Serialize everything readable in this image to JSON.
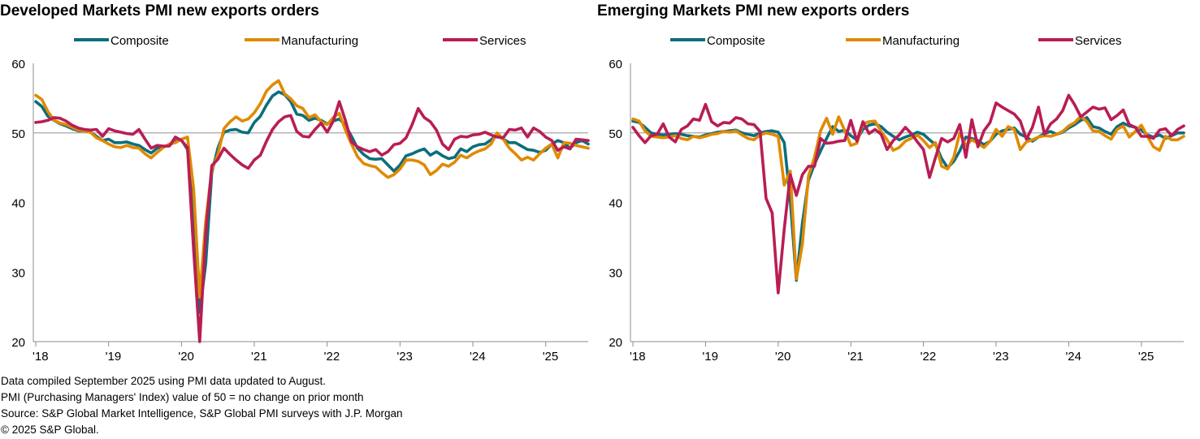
{
  "colors": {
    "composite": "#0c6e7d",
    "manufacturing": "#e08a00",
    "services": "#b91d55",
    "reference": "#a6a6a6",
    "axis": "#8c8c8c"
  },
  "footer": {
    "lines": [
      "Data compiled September 2025 using PMI data updated to August.",
      "PMI (Purchasing Managers' Index) value of 50 = no change on prior month",
      "Source: S&P Global Market Intelligence, S&P Global PMI surveys with J.P. Morgan",
      "© 2025 S&P Global."
    ]
  },
  "chart_data": [
    {
      "type": "line",
      "title": "Developed Markets PMI new exports orders",
      "xlabel": "",
      "ylabel": "",
      "x_start": "2018-01",
      "x_end": "2025-08",
      "ylim": [
        20,
        60
      ],
      "yticks": [
        20,
        30,
        40,
        50,
        60
      ],
      "xtick_labels": [
        "'18",
        "'19",
        "'20",
        "'21",
        "'22",
        "'23",
        "'24",
        "'25"
      ],
      "reference_line": 50,
      "legend_position": "top",
      "series": [
        {
          "name": "Composite",
          "color": "#0c6e7d",
          "values": [
            54.5,
            53.8,
            52.4,
            51.8,
            51.3,
            51.0,
            50.6,
            50.3,
            50.3,
            50.1,
            49.5,
            48.9,
            49.1,
            48.6,
            48.6,
            48.7,
            48.4,
            48.2,
            47.6,
            47.1,
            47.8,
            48.0,
            48.2,
            48.8,
            49.0,
            47.6,
            38.4,
            24.2,
            31.2,
            44.3,
            47.8,
            50.1,
            50.4,
            50.5,
            50.1,
            50.0,
            51.5,
            52.4,
            54.0,
            55.3,
            55.9,
            55.5,
            54.5,
            52.7,
            52.5,
            51.8,
            52.1,
            51.8,
            51.3,
            51.7,
            52.0,
            51.1,
            49.5,
            47.8,
            46.9,
            46.3,
            46.2,
            46.3,
            45.4,
            44.5,
            45.4,
            46.7,
            47.0,
            47.4,
            47.7,
            46.8,
            47.3,
            46.7,
            46.3,
            46.5,
            47.7,
            47.3,
            48.0,
            48.3,
            48.4,
            49.0,
            49.7,
            49.1,
            48.6,
            48.6,
            48.1,
            47.6,
            47.5,
            47.2,
            47.5,
            48.4,
            48.9,
            48.6,
            47.8,
            48.6,
            48.9,
            48.4
          ]
        },
        {
          "name": "Manufacturing",
          "color": "#e08a00",
          "values": [
            55.4,
            54.8,
            53.1,
            51.8,
            51.4,
            51.2,
            50.8,
            50.4,
            50.3,
            50.1,
            49.3,
            48.9,
            48.4,
            48.0,
            47.9,
            48.2,
            47.9,
            47.8,
            47.0,
            46.4,
            47.2,
            47.9,
            48.4,
            48.6,
            49.1,
            49.4,
            42.0,
            26.4,
            37.3,
            44.7,
            46.9,
            50.6,
            51.6,
            52.3,
            51.7,
            52.0,
            52.9,
            54.2,
            56.0,
            56.9,
            57.5,
            55.6,
            54.9,
            53.9,
            53.5,
            52.2,
            52.6,
            51.6,
            51.2,
            52.2,
            52.8,
            50.4,
            48.4,
            46.6,
            45.6,
            45.3,
            45.1,
            44.3,
            43.6,
            44.0,
            44.8,
            46.1,
            46.1,
            45.9,
            45.4,
            44.0,
            44.6,
            45.5,
            45.2,
            45.8,
            46.8,
            46.4,
            47.0,
            47.4,
            47.7,
            48.4,
            50.0,
            49.1,
            47.8,
            47.0,
            46.1,
            46.5,
            46.1,
            47.0,
            47.8,
            48.4,
            46.4,
            48.6,
            48.5,
            48.2,
            48.0,
            47.8
          ]
        },
        {
          "name": "Services",
          "color": "#b91d55",
          "values": [
            51.5,
            51.6,
            51.8,
            52.2,
            52.1,
            51.7,
            51.1,
            50.7,
            50.5,
            50.4,
            50.5,
            49.5,
            50.6,
            50.3,
            50.1,
            49.9,
            49.8,
            50.5,
            49.1,
            47.8,
            48.2,
            48.1,
            48.1,
            49.4,
            48.9,
            47.9,
            33.2,
            20.0,
            35.5,
            45.3,
            46.2,
            47.8,
            46.9,
            46.1,
            45.4,
            44.9,
            46.1,
            46.8,
            48.8,
            50.5,
            51.6,
            52.3,
            52.5,
            50.2,
            49.5,
            49.4,
            50.5,
            51.4,
            50.1,
            51.7,
            54.5,
            51.8,
            48.7,
            48.0,
            47.6,
            47.3,
            47.6,
            46.8,
            47.3,
            48.3,
            48.5,
            49.3,
            51.2,
            53.5,
            52.2,
            51.6,
            50.4,
            48.4,
            47.6,
            49.1,
            49.5,
            49.4,
            49.7,
            49.8,
            50.1,
            49.7,
            49.4,
            49.3,
            50.5,
            50.4,
            50.7,
            49.4,
            50.7,
            50.2,
            49.4,
            48.9,
            47.5,
            48.0,
            47.7,
            49.1,
            49.0,
            48.9
          ]
        }
      ]
    },
    {
      "type": "line",
      "title": "Emerging Markets PMI new exports orders",
      "xlabel": "",
      "ylabel": "",
      "x_start": "2018-01",
      "x_end": "2025-08",
      "ylim": [
        20,
        60
      ],
      "yticks": [
        20,
        30,
        40,
        50,
        60
      ],
      "xtick_labels": [
        "'18",
        "'19",
        "'20",
        "'21",
        "'22",
        "'23",
        "'24",
        "'25"
      ],
      "reference_line": 50,
      "legend_position": "top",
      "series": [
        {
          "name": "Composite",
          "color": "#0c6e7d",
          "values": [
            51.7,
            51.5,
            50.8,
            50.0,
            49.8,
            49.7,
            49.8,
            49.9,
            49.8,
            49.6,
            49.5,
            49.4,
            49.7,
            49.9,
            50.1,
            50.2,
            50.3,
            50.4,
            50.0,
            49.8,
            49.6,
            50.0,
            50.2,
            50.3,
            50.1,
            48.6,
            40.3,
            28.8,
            37.0,
            43.2,
            45.5,
            47.4,
            49.2,
            50.9,
            50.2,
            50.4,
            49.6,
            49.0,
            50.5,
            51.1,
            51.3,
            50.9,
            50.1,
            49.5,
            49.0,
            49.4,
            49.7,
            50.1,
            49.8,
            49.0,
            48.3,
            46.3,
            45.0,
            45.9,
            47.4,
            49.4,
            49.2,
            48.9,
            48.3,
            48.8,
            49.8,
            50.3,
            50.5,
            50.7,
            49.8,
            49.4,
            48.8,
            49.4,
            49.9,
            50.2,
            49.8,
            50.1,
            50.7,
            51.2,
            51.8,
            52.2,
            50.9,
            50.7,
            50.2,
            49.8,
            50.9,
            51.4,
            51.0,
            50.8,
            50.4,
            49.7,
            49.4,
            49.7,
            49.2,
            49.6,
            50.0,
            50.0
          ]
        },
        {
          "name": "Manufacturing",
          "color": "#e08a00",
          "values": [
            52.0,
            51.7,
            50.3,
            49.5,
            49.4,
            49.3,
            49.4,
            49.6,
            49.2,
            49.0,
            49.5,
            49.3,
            49.5,
            49.8,
            49.9,
            50.2,
            50.1,
            50.3,
            49.7,
            49.2,
            49.0,
            49.7,
            50.0,
            49.8,
            49.5,
            42.5,
            44.5,
            29.0,
            34.0,
            43.8,
            46.5,
            50.3,
            52.1,
            49.8,
            52.3,
            50.3,
            48.2,
            48.5,
            51.3,
            51.6,
            51.7,
            50.2,
            49.0,
            47.5,
            47.9,
            48.8,
            49.2,
            49.7,
            48.9,
            47.9,
            48.6,
            45.2,
            44.8,
            46.5,
            50.0,
            48.2,
            49.0,
            48.5,
            47.9,
            48.8,
            50.5,
            49.5,
            50.9,
            50.5,
            47.6,
            48.7,
            49.0,
            49.4,
            49.6,
            49.5,
            49.8,
            50.2,
            51.0,
            51.5,
            52.4,
            51.6,
            50.3,
            50.2,
            49.6,
            49.1,
            50.5,
            51.0,
            49.4,
            50.2,
            51.1,
            49.5,
            48.0,
            47.5,
            49.5,
            49.0,
            49.0,
            49.5
          ]
        },
        {
          "name": "Services",
          "color": "#b91d55",
          "values": [
            50.8,
            49.6,
            48.6,
            49.6,
            49.8,
            51.3,
            49.4,
            48.7,
            50.5,
            51.0,
            52.0,
            51.8,
            54.1,
            51.6,
            51.0,
            51.5,
            51.4,
            52.2,
            52.0,
            51.3,
            51.2,
            50.2,
            40.6,
            38.5,
            27.0,
            36.2,
            44.0,
            41.0,
            44.0,
            45.2,
            45.2,
            49.2,
            48.5,
            48.6,
            48.8,
            48.9,
            51.8,
            48.8,
            51.6,
            49.9,
            50.5,
            49.8,
            47.6,
            48.9,
            49.7,
            50.8,
            49.9,
            48.7,
            47.6,
            43.6,
            46.5,
            49.2,
            48.7,
            49.2,
            51.2,
            46.5,
            51.9,
            48.0,
            50.3,
            51.5,
            54.3,
            53.7,
            53.2,
            52.7,
            51.7,
            49.1,
            50.8,
            53.7,
            49.8,
            51.3,
            52.0,
            53.2,
            55.4,
            54.0,
            52.3,
            53.0,
            53.7,
            53.4,
            53.6,
            51.9,
            52.5,
            53.3,
            51.2,
            50.8,
            49.5,
            49.5,
            49.2,
            50.4,
            50.6,
            49.6,
            50.5,
            51.0
          ]
        }
      ]
    }
  ]
}
